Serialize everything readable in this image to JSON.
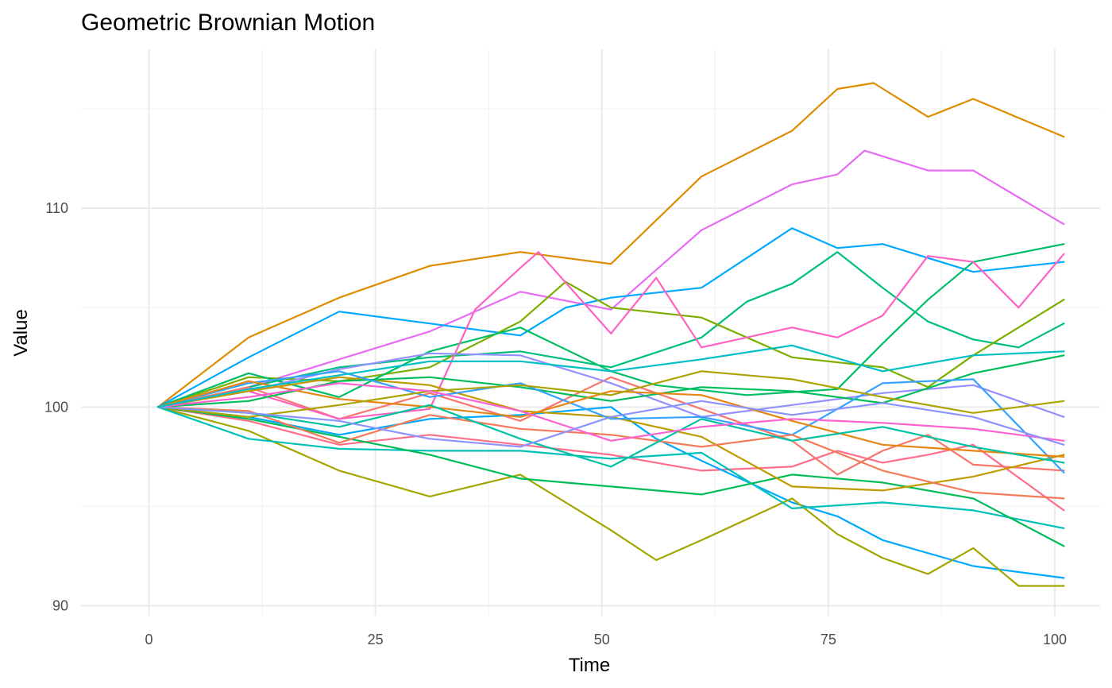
{
  "chart_data": {
    "type": "line",
    "title": "Geometric Brownian Motion",
    "xlabel": "Time",
    "ylabel": "Value",
    "xlim": [
      -7.5,
      105
    ],
    "ylim": [
      89.5,
      118
    ],
    "x_ticks": [
      0,
      25,
      50,
      75,
      100
    ],
    "y_ticks": [
      90,
      100,
      110
    ],
    "grid": true,
    "legend": "none",
    "series": [
      {
        "color": "#de8c00",
        "x": [
          1,
          11,
          21,
          31,
          41,
          51,
          61,
          71,
          76,
          80,
          86,
          91,
          101
        ],
        "values": [
          100,
          103.5,
          105.5,
          107.1,
          107.8,
          107.2,
          111.6,
          113.9,
          116.0,
          116.3,
          114.6,
          115.5,
          113.6
        ]
      },
      {
        "color": "#e76bf3",
        "x": [
          1,
          11,
          21,
          31,
          41,
          51,
          61,
          71,
          76,
          79,
          86,
          91,
          101
        ],
        "values": [
          100,
          101.0,
          102.4,
          103.8,
          105.8,
          104.9,
          108.9,
          111.2,
          111.7,
          112.9,
          111.9,
          111.9,
          109.2
        ]
      },
      {
        "color": "#00a9ff",
        "x": [
          1,
          11,
          21,
          31,
          41,
          46,
          51,
          61,
          71,
          76,
          81,
          91,
          101
        ],
        "values": [
          100,
          102.5,
          104.8,
          104.2,
          103.6,
          105.0,
          105.5,
          106.0,
          109.0,
          108.0,
          108.2,
          106.8,
          107.3
        ]
      },
      {
        "color": "#00bf7d",
        "x": [
          1,
          11,
          21,
          31,
          41,
          51,
          61,
          66,
          71,
          76,
          81,
          86,
          91,
          96,
          101
        ],
        "values": [
          100,
          101.0,
          102.0,
          102.5,
          102.8,
          102.0,
          103.5,
          105.3,
          106.2,
          107.8,
          106.0,
          104.3,
          103.4,
          103.0,
          104.2
        ]
      },
      {
        "color": "#7cae00",
        "x": [
          1,
          11,
          21,
          31,
          41,
          46,
          51,
          61,
          71,
          81,
          86,
          91,
          101
        ],
        "values": [
          100,
          101.5,
          101.3,
          102.0,
          104.3,
          106.3,
          105.0,
          104.5,
          102.5,
          102.0,
          101.0,
          102.6,
          105.4
        ]
      },
      {
        "color": "#00be67",
        "x": [
          1,
          11,
          21,
          31,
          41,
          51,
          56,
          66,
          76,
          81,
          86,
          91,
          101
        ],
        "values": [
          100,
          101.7,
          100.5,
          102.8,
          104.0,
          101.8,
          101.1,
          100.6,
          100.9,
          103.2,
          105.4,
          107.3,
          108.2
        ]
      },
      {
        "color": "#fe6e8a",
        "x": [
          1,
          11,
          21,
          31,
          41,
          51,
          61,
          71,
          76,
          81,
          86,
          91,
          101
        ],
        "values": [
          100,
          99.3,
          98.1,
          98.6,
          98.1,
          97.6,
          96.8,
          97.0,
          97.8,
          97.2,
          97.6,
          98.1,
          94.8
        ]
      },
      {
        "color": "#f8766d",
        "x": [
          1,
          11,
          21,
          31,
          41,
          51,
          61,
          71,
          76,
          81,
          86,
          91,
          101
        ],
        "values": [
          100,
          101.0,
          99.4,
          100.7,
          99.3,
          101.5,
          99.9,
          98.3,
          96.6,
          97.8,
          98.6,
          97.1,
          96.8
        ]
      },
      {
        "color": "#ff61c3",
        "x": [
          1,
          11,
          21,
          31,
          36,
          41,
          43,
          51,
          56,
          61,
          71,
          76,
          81,
          86,
          91,
          96,
          101
        ],
        "values": [
          100,
          100.8,
          99.4,
          99.9,
          104.9,
          107.0,
          107.8,
          103.7,
          106.5,
          103.0,
          104.0,
          103.5,
          104.6,
          107.6,
          107.3,
          105.0,
          107.7
        ]
      },
      {
        "color": "#9590ff",
        "x": [
          1,
          11,
          21,
          31,
          41,
          51,
          61,
          71,
          81,
          91,
          101
        ],
        "values": [
          100,
          100.8,
          101.9,
          102.7,
          102.6,
          101.2,
          99.5,
          100.1,
          100.7,
          101.1,
          99.5
        ]
      },
      {
        "color": "#00a9ff",
        "x": [
          1,
          11,
          21,
          31,
          41,
          51,
          56,
          61,
          71,
          76,
          81,
          91,
          101
        ],
        "values": [
          100,
          99.5,
          98.6,
          99.4,
          99.6,
          100.0,
          98.4,
          97.3,
          95.2,
          94.5,
          93.3,
          92.0,
          91.4
        ]
      },
      {
        "color": "#a3a500",
        "x": [
          1,
          11,
          21,
          31,
          41,
          51,
          56,
          61,
          71,
          76,
          81,
          86,
          91,
          96,
          101
        ],
        "values": [
          100,
          98.8,
          96.8,
          95.5,
          96.6,
          93.8,
          92.3,
          93.3,
          95.4,
          93.6,
          92.4,
          91.6,
          92.9,
          91.0,
          91.0
        ]
      },
      {
        "color": "#00c0b8",
        "x": [
          1,
          11,
          21,
          31,
          41,
          51,
          61,
          71,
          81,
          91,
          101
        ],
        "values": [
          100,
          98.4,
          97.9,
          97.8,
          97.8,
          97.4,
          97.7,
          94.9,
          95.2,
          94.8,
          93.9
        ]
      },
      {
        "color": "#00bc56",
        "x": [
          1,
          11,
          21,
          31,
          41,
          51,
          61,
          71,
          81,
          91,
          101
        ],
        "values": [
          100,
          99.4,
          98.5,
          97.6,
          96.4,
          96.0,
          95.6,
          96.6,
          96.2,
          95.4,
          93.0
        ]
      },
      {
        "color": "#c09b00",
        "x": [
          1,
          11,
          21,
          31,
          41,
          51,
          61,
          71,
          81,
          91,
          101
        ],
        "values": [
          100,
          100.8,
          101.5,
          101.1,
          99.8,
          99.5,
          98.5,
          96.0,
          95.8,
          96.5,
          97.6
        ]
      },
      {
        "color": "#00bd5c",
        "x": [
          1,
          11,
          21,
          31,
          41,
          51,
          61,
          71,
          81,
          91,
          101
        ],
        "values": [
          100,
          100.3,
          101.3,
          101.5,
          101.0,
          100.3,
          101.0,
          100.8,
          100.2,
          101.7,
          102.6
        ]
      },
      {
        "color": "#35a2ff",
        "x": [
          1,
          11,
          21,
          31,
          41,
          51,
          61,
          71,
          81,
          91,
          101
        ],
        "values": [
          100,
          101.2,
          101.8,
          100.5,
          101.2,
          99.4,
          99.5,
          98.6,
          101.2,
          101.4,
          96.7
        ]
      },
      {
        "color": "#e68613",
        "x": [
          1,
          11,
          21,
          31,
          41,
          51,
          61,
          71,
          81,
          91,
          101
        ],
        "values": [
          100,
          101.3,
          100.4,
          100.0,
          99.5,
          100.8,
          100.6,
          99.3,
          98.1,
          97.8,
          97.5
        ]
      },
      {
        "color": "#f37b59",
        "x": [
          1,
          11,
          21,
          31,
          41,
          51,
          61,
          71,
          81,
          91,
          101
        ],
        "values": [
          100,
          99.8,
          98.2,
          99.6,
          98.9,
          98.6,
          98.0,
          98.6,
          96.8,
          95.7,
          95.4
        ]
      },
      {
        "color": "#aba300",
        "x": [
          1,
          11,
          21,
          31,
          41,
          51,
          61,
          71,
          81,
          91,
          101
        ],
        "values": [
          100,
          99.5,
          100.1,
          100.8,
          101.1,
          100.6,
          101.8,
          101.4,
          100.5,
          99.7,
          100.3
        ]
      },
      {
        "color": "#00c1a3",
        "x": [
          1,
          11,
          21,
          31,
          41,
          51,
          61,
          71,
          81,
          91,
          101
        ],
        "values": [
          100,
          99.7,
          99.0,
          100.1,
          98.4,
          97.0,
          99.4,
          98.3,
          99.0,
          98.0,
          97.2
        ]
      },
      {
        "color": "#fd61d1",
        "x": [
          1,
          11,
          21,
          31,
          41,
          51,
          61,
          71,
          81,
          91,
          101
        ],
        "values": [
          100,
          100.5,
          101.2,
          100.8,
          99.8,
          98.3,
          99.0,
          99.4,
          99.2,
          98.9,
          98.3
        ]
      },
      {
        "color": "#8b93ff",
        "x": [
          1,
          11,
          21,
          31,
          41,
          51,
          61,
          71,
          81,
          91,
          101
        ],
        "values": [
          100,
          99.7,
          99.3,
          98.4,
          98.0,
          99.5,
          100.3,
          99.6,
          100.2,
          99.5,
          98.1
        ]
      },
      {
        "color": "#00bfc4",
        "x": [
          1,
          11,
          21,
          31,
          41,
          51,
          61,
          71,
          81,
          91,
          101
        ],
        "values": [
          100,
          100.9,
          101.6,
          102.3,
          102.3,
          101.8,
          102.4,
          103.1,
          101.8,
          102.6,
          102.8
        ]
      }
    ]
  }
}
